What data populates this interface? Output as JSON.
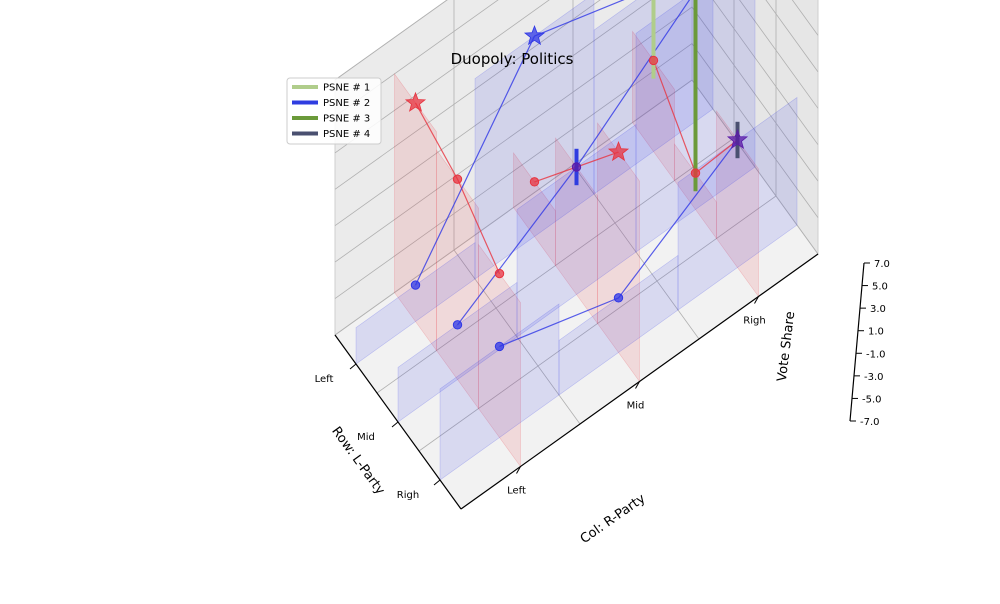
{
  "chart_data": {
    "type": "3d-surface-bar",
    "title": "Duopoly: Politics",
    "xlabel": "Row: L-Party",
    "ylabel": "Col: R-Party",
    "zlabel": "Vote Share",
    "row_categories": [
      "Left",
      "Mid",
      "Righ"
    ],
    "col_categories": [
      "Left",
      "Mid",
      "Righ"
    ],
    "zticks": [
      "-7.0",
      "-5.0",
      "-3.0",
      "-1.0",
      "1.0",
      "3.0",
      "5.0",
      "7.0"
    ],
    "zlim": [
      -7,
      7
    ],
    "grid": true,
    "legend_position": "top-left",
    "row_payoffs": [
      [
        5,
        -4,
        -2
      ],
      [
        4,
        0,
        -5
      ],
      [
        2,
        4,
        0
      ]
    ],
    "col_payoffs": [
      [
        -5,
        4,
        2
      ],
      [
        -4,
        0,
        5
      ],
      [
        -2,
        -4,
        0
      ]
    ],
    "colors": {
      "row": "#e8333f",
      "col": "#2f37e6",
      "both": "#5a1aa8"
    },
    "psne": [
      {
        "name": "PSNE # 1",
        "color": "#b0cd8b",
        "row": 0,
        "col": 2
      },
      {
        "name": "PSNE # 2",
        "color": "#2f3de0",
        "row": 1,
        "col": 1
      },
      {
        "name": "PSNE # 3",
        "color": "#6b9a3a",
        "row": 1,
        "col": 2
      },
      {
        "name": "PSNE # 4",
        "color": "#4a5070",
        "row": 2,
        "col": 2
      }
    ]
  }
}
